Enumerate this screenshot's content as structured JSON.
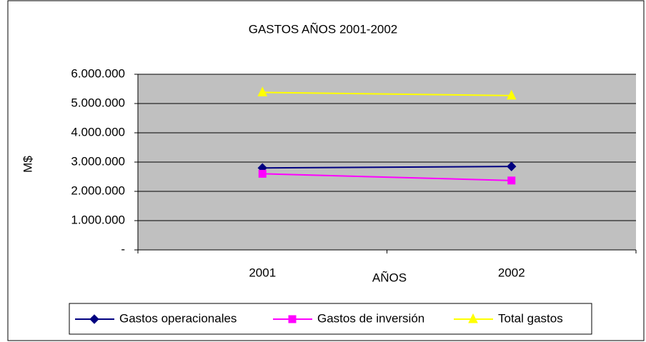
{
  "chart_data": {
    "type": "line",
    "title": "GASTOS AÑOS 2001-2002",
    "x_label": "AÑOS",
    "y_label": "M$",
    "categories": [
      "2001",
      "2002"
    ],
    "series": [
      {
        "name": "Gastos operacionales",
        "color": "#000080",
        "marker": "diamond",
        "values": [
          2800000,
          2850000
        ]
      },
      {
        "name": "Gastos de inversión",
        "color": "#ff00ff",
        "marker": "square",
        "values": [
          2600000,
          2370000
        ]
      },
      {
        "name": "Total gastos",
        "color": "#ffff00",
        "marker": "triangle",
        "values": [
          5380000,
          5270000
        ]
      }
    ],
    "ylim": [
      0,
      6000000
    ],
    "yticks": [
      {
        "value": 0,
        "label": "-"
      },
      {
        "value": 1000000,
        "label": "1.000.000"
      },
      {
        "value": 2000000,
        "label": "2.000.000"
      },
      {
        "value": 3000000,
        "label": "3.000.000"
      },
      {
        "value": 4000000,
        "label": "4.000.000"
      },
      {
        "value": 5000000,
        "label": "5.000.000"
      },
      {
        "value": 6000000,
        "label": "6.000.000"
      }
    ],
    "grid": true,
    "legend": "bottom"
  }
}
